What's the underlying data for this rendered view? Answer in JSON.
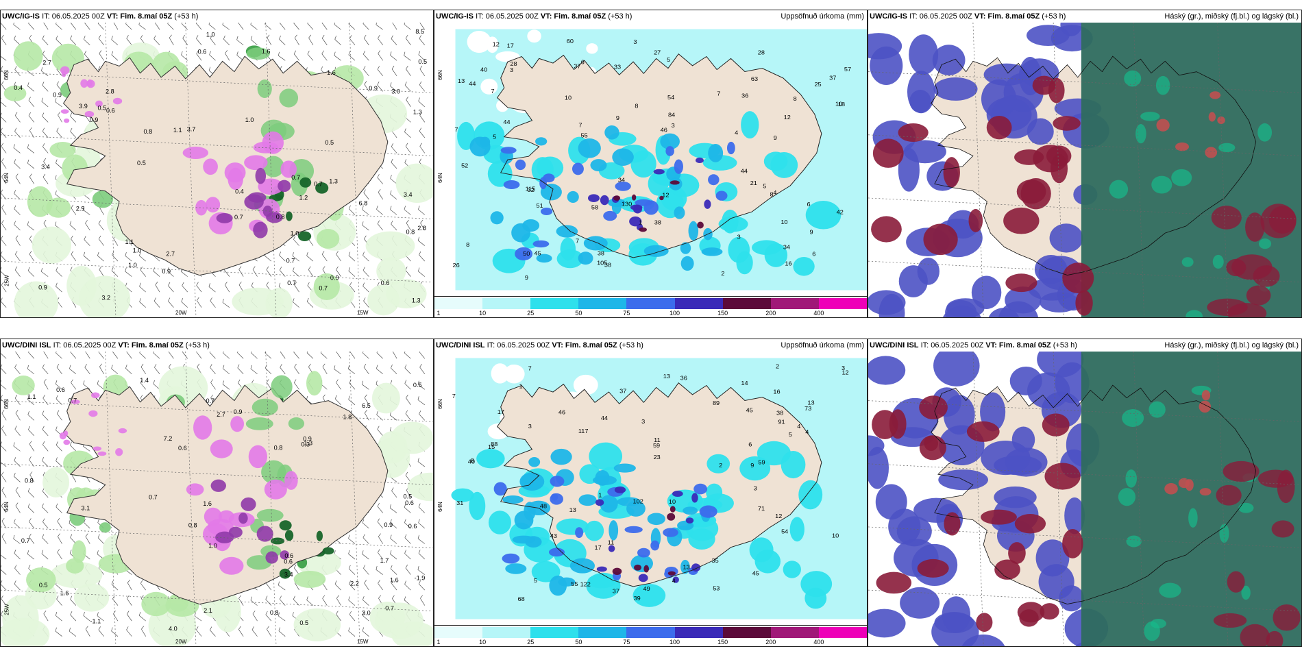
{
  "panels": [
    {
      "model": "UWC/IG-IS",
      "it": "IT: 06.05.2025 00Z",
      "vt_label": "VT:",
      "vt": "Fim. 8.maí 05Z",
      "lead": "(+53 h)",
      "right": "",
      "kind": "wind",
      "lon_labels": [
        "20W",
        "15W"
      ],
      "lat_labels": [
        "66N",
        "64N",
        "25W"
      ],
      "values": [
        "0.5",
        "1.0",
        "0.9",
        "0.9",
        "0.5",
        "0.9",
        "0.7",
        "1.1",
        "1.6",
        "1.3",
        "1.0",
        "1.6",
        "3.7",
        "3.4",
        "3.2",
        "3.4",
        "2.8",
        "3.0",
        "1.2",
        "2.7",
        "2.7",
        "2.8",
        "6.8",
        "8.5",
        "3.9",
        "1.3",
        "0.4",
        "0.4",
        "0.9",
        "0.6",
        "1.0",
        "0.7",
        "0.7",
        "1.0",
        "0.8",
        "0.5",
        "0.5",
        "0.7",
        "0.7",
        "0.9",
        "2.9",
        "1.1",
        "0.8",
        "0.6",
        "0.6",
        "1.3",
        "1.0",
        "0.8",
        "0.9",
        "0.7"
      ]
    },
    {
      "model": "UWC/IG-IS",
      "it": "IT: 06.05.2025 00Z",
      "vt_label": "VT:",
      "vt": "Fim. 8.maí 05Z",
      "lead": "(+53 h)",
      "right": "Uppsöfnuð úrkoma (mm)",
      "kind": "precip",
      "lon_labels": [],
      "lat_labels": [
        "66N",
        "64N"
      ],
      "values": [
        "6",
        "10",
        "7",
        "9",
        "3",
        "5",
        "4",
        "32",
        "57",
        "51",
        "38",
        "18",
        "44",
        "37",
        "34",
        "54",
        "58",
        "25",
        "13",
        "16",
        "12",
        "12",
        "40",
        "52",
        "60",
        "130",
        "63",
        "21",
        "45",
        "26",
        "46",
        "28",
        "28",
        "42",
        "34",
        "27",
        "38",
        "38",
        "33",
        "44",
        "105",
        "115",
        "84",
        "55",
        "50",
        "37",
        "44",
        "36",
        "7",
        "6",
        "17",
        "8",
        "3",
        "5",
        "9",
        "8",
        "10",
        "12",
        "7",
        "7",
        "8",
        "9",
        "10",
        "9",
        "6",
        "7",
        "1",
        "2",
        "4",
        "8",
        "3",
        "3",
        "5"
      ],
      "legend": [
        "1",
        "10",
        "25",
        "50",
        "75",
        "100",
        "150",
        "200",
        "400"
      ]
    },
    {
      "model": "UWC/IG-IS",
      "it": "IT: 06.05.2025 00Z",
      "vt_label": "VT:",
      "vt": "Fim. 8.maí 05Z",
      "lead": "(+53 h)",
      "right": "Háský (gr.), miðský (fj.bl.) og lágský (bl.)",
      "kind": "cloud"
    },
    {
      "model": "UWC/DINI ISL",
      "it": "IT: 06.05.2025 00Z",
      "vt_label": "VT:",
      "vt": "Fim. 8.maí 05Z",
      "lead": "(+53 h)",
      "right": "",
      "kind": "wind",
      "lon_labels": [
        "20W",
        "15W"
      ],
      "lat_labels": [
        "66N",
        "64N",
        "25W"
      ],
      "values": [
        "0.7",
        "0.6",
        "0.5",
        "0.5",
        "0.9",
        "0.8",
        "1.1",
        "1.0",
        "-1.9",
        "0.6",
        "0.3",
        "0.8",
        "1.6",
        "1.6",
        "1.4",
        "1.8",
        "1.6",
        "0.6",
        "4.0",
        "3.4",
        "1.3",
        "3.1",
        "3.0",
        "1.7",
        "2.7",
        "7.2",
        "6.5",
        "0.9",
        "0.9",
        "0.7",
        "0.7",
        "0.5",
        "0.6",
        "0.6",
        "-1.1",
        "0.6",
        "0.5",
        "0.7",
        "0.8",
        "0.7",
        "2.1",
        "2.2",
        "0.8"
      ]
    },
    {
      "model": "UWC/DINI ISL",
      "it": "IT: 06.05.2025 00Z",
      "vt_label": "VT:",
      "vt": "Fim. 8.maí 05Z",
      "lead": "(+53 h)",
      "right": "Uppsöfnuð úrkoma (mm)",
      "kind": "precip",
      "lon_labels": [],
      "lat_labels": [
        "66N",
        "64N"
      ],
      "values": [
        "17",
        "11",
        "36",
        "68",
        "37",
        "55",
        "12",
        "13",
        "13",
        "15",
        "17",
        "45",
        "73",
        "102",
        "88",
        "53",
        "48",
        "31",
        "45",
        "71",
        "91",
        "59",
        "37",
        "54",
        "43",
        "49",
        "44",
        "117",
        "122",
        "38",
        "40",
        "46",
        "39",
        "59",
        "89",
        "35",
        "12",
        "16",
        "14",
        "23",
        "8",
        "7",
        "7",
        "6",
        "5",
        "5",
        "3",
        "4",
        "4",
        "3",
        "3",
        "10",
        "9",
        "10",
        "13",
        "11",
        "13",
        "1",
        "1",
        "4",
        "2",
        "2",
        "3"
      ],
      "legend": [
        "1",
        "10",
        "25",
        "50",
        "75",
        "100",
        "150",
        "200",
        "400"
      ]
    },
    {
      "model": "UWC/DINI ISL",
      "it": "IT: 06.05.2025 00Z",
      "vt_label": "VT:",
      "vt": "Fim. 8.maí 05Z",
      "lead": "(+53 h)",
      "right": "Háský (gr.), miðský (fj.bl.) og lágský (bl.)",
      "kind": "cloud"
    }
  ],
  "colors": {
    "land": "#efe2d4",
    "precip": [
      "#e6fcfc",
      "#b6f6f8",
      "#2ee0ec",
      "#1eb6e8",
      "#3c6cec",
      "#3a2ab8",
      "#5c0a3a",
      "#a01878",
      "#ee00b8",
      "#f2b0ee"
    ],
    "green": [
      "#e3f6dc",
      "#b6e8a6",
      "#7ccc7c",
      "#3fa14a",
      "#17652a"
    ],
    "pink": "#e27ae8",
    "cloud_high": "#2e6b5e",
    "cloud_mid": "#8a1c3a",
    "cloud_low": "#4c52c4"
  }
}
